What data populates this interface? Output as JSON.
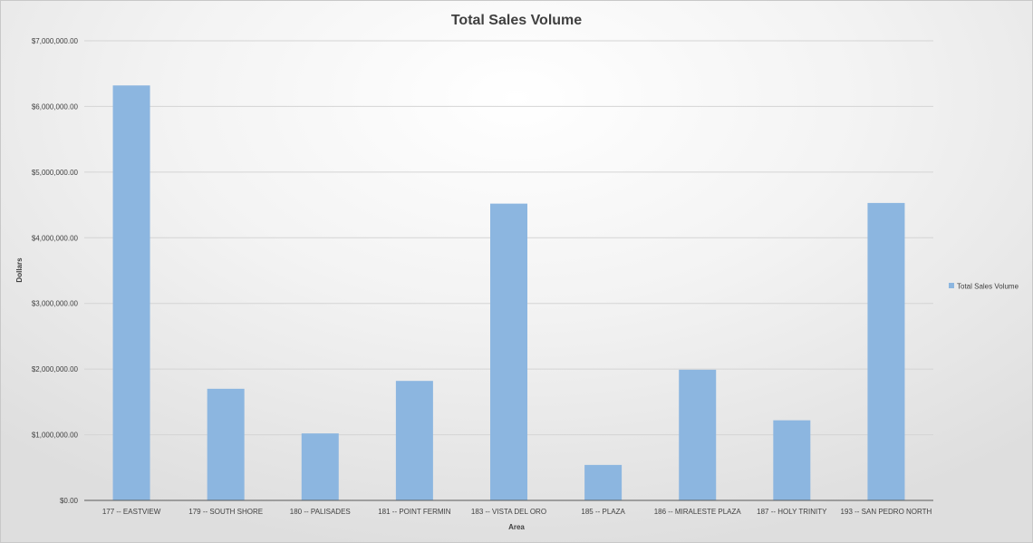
{
  "chart_data": {
    "type": "bar",
    "title": "Total Sales Volume",
    "xlabel": "Area",
    "ylabel": "Dollars",
    "categories": [
      "177 -- EASTVIEW",
      "179 -- SOUTH SHORE",
      "180 -- PALISADES",
      "181 -- POINT FERMIN",
      "183 -- VISTA DEL ORO",
      "185 -- PLAZA",
      "186 -- MIRALESTE PLAZA",
      "187 -- HOLY TRINITY",
      "193 -- SAN PEDRO NORTH"
    ],
    "series": [
      {
        "name": "Total Sales Volume",
        "color": "#8cb6e0",
        "values": [
          6320000,
          1700000,
          1020000,
          1820000,
          4520000,
          540000,
          1990000,
          1220000,
          4530000
        ]
      }
    ],
    "ylim": [
      0,
      7000000
    ],
    "yticks": [
      0,
      1000000,
      2000000,
      3000000,
      4000000,
      5000000,
      6000000,
      7000000
    ],
    "ytick_labels": [
      "$0.00",
      "$1,000,000.00",
      "$2,000,000.00",
      "$3,000,000.00",
      "$4,000,000.00",
      "$5,000,000.00",
      "$6,000,000.00",
      "$7,000,000.00"
    ],
    "grid": true,
    "legend_position": "right"
  }
}
